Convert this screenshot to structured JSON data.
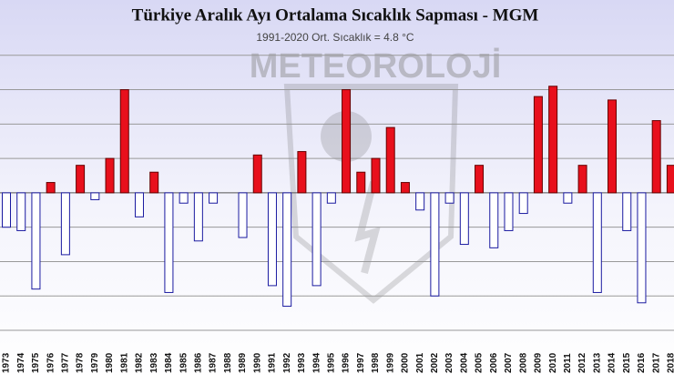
{
  "chart_data": {
    "type": "bar",
    "title": "Türkiye Aralık Ayı Ortalama Sıcaklık Sapması - MGM",
    "subtitle": "1991-2020 Ort. Sıcaklık = 4.8 °C",
    "watermark": "METEOROLOJİ",
    "categories": [
      "1973",
      "1974",
      "1975",
      "1976",
      "1977",
      "1978",
      "1979",
      "1980",
      "1981",
      "1982",
      "1983",
      "1984",
      "1985",
      "1986",
      "1987",
      "1988",
      "1989",
      "1990",
      "1991",
      "1992",
      "1993",
      "1994",
      "1995",
      "1996",
      "1997",
      "1998",
      "1999",
      "2000",
      "2001",
      "2002",
      "2003",
      "2004",
      "2005",
      "2006",
      "2007",
      "2008",
      "2009",
      "2010",
      "2011",
      "2012",
      "2013",
      "2014",
      "2015",
      "2016",
      "2017",
      "2018"
    ],
    "values": [
      -1.0,
      -1.1,
      -2.8,
      0.3,
      -1.8,
      0.8,
      -0.2,
      1.0,
      3.0,
      -0.7,
      0.6,
      -2.9,
      -0.3,
      -1.4,
      -0.3,
      0.0,
      -1.3,
      1.1,
      -2.7,
      -3.3,
      1.2,
      -2.7,
      -0.3,
      3.0,
      0.6,
      1.0,
      1.9,
      0.3,
      -0.5,
      -3.0,
      -0.3,
      -1.5,
      0.8,
      -1.6,
      -1.1,
      -0.6,
      2.8,
      3.1,
      -0.3,
      0.8,
      -2.9,
      2.7,
      -1.1,
      -3.2,
      2.1,
      0.8
    ],
    "positive_color": "#e8101c",
    "negative_color": "#ffffff",
    "negative_outline": "#1a1aa0",
    "ylim": [
      -4,
      5
    ],
    "yticks": [
      -4,
      -3,
      -2,
      -1,
      0,
      1,
      2,
      3,
      4
    ],
    "grid": true
  }
}
